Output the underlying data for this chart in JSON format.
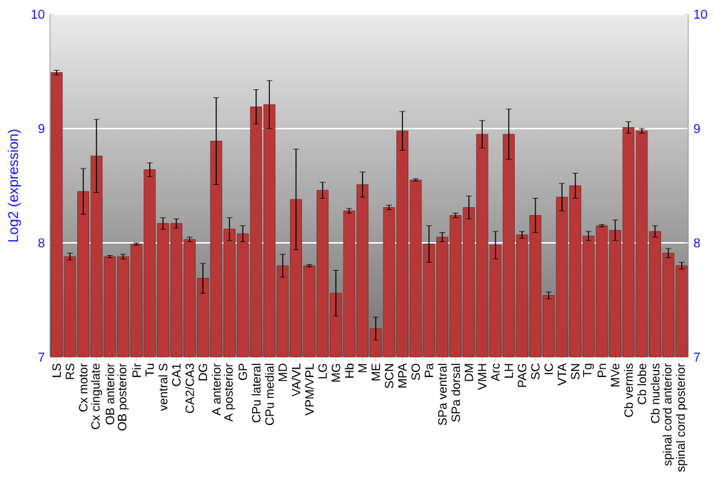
{
  "chart_data": {
    "type": "bar",
    "ylabel": "Log2 (expression)",
    "categories": [
      "LS",
      "RS",
      "Cx motor",
      "Cx cingulate",
      "OB anterior",
      "OB posterior",
      "Pir",
      "Tu",
      "ventral S",
      "CA1",
      "CA2/CA3",
      "DG",
      "A anterior",
      "A posterior",
      "GP",
      "CPu lateral",
      "CPu medial",
      "MD",
      "VA/VL",
      "VPM/VPL",
      "LG",
      "MG",
      "Hb",
      "M",
      "ME",
      "SCN",
      "MPA",
      "SO",
      "Pa",
      "SPa ventral",
      "SPa dorsal",
      "DM",
      "VMH",
      "Arc",
      "LH",
      "PAG",
      "SC",
      "IC",
      "VTA",
      "SN",
      "Tg",
      "Pn",
      "MVe",
      "Cb vermis",
      "Cb lobe",
      "Cb nucleus",
      "spinal cord anterior",
      "spinal cord posterior"
    ],
    "values": [
      9.49,
      7.88,
      8.45,
      8.76,
      7.88,
      7.88,
      7.99,
      8.64,
      8.17,
      8.17,
      8.03,
      7.69,
      8.89,
      8.12,
      8.08,
      9.19,
      9.21,
      7.8,
      8.38,
      7.8,
      8.46,
      7.56,
      8.28,
      8.51,
      7.25,
      8.31,
      8.98,
      8.55,
      7.99,
      8.05,
      8.24,
      8.31,
      8.95,
      7.98,
      8.95,
      8.07,
      8.24,
      7.54,
      8.4,
      8.5,
      8.06,
      8.15,
      8.11,
      9.01,
      8.98,
      8.1,
      7.91,
      7.8
    ],
    "errors": [
      0.02,
      0.03,
      0.2,
      0.32,
      0.01,
      0.02,
      0.01,
      0.06,
      0.05,
      0.04,
      0.02,
      0.13,
      0.38,
      0.1,
      0.07,
      0.15,
      0.21,
      0.1,
      0.44,
      0.01,
      0.07,
      0.2,
      0.02,
      0.11,
      0.1,
      0.02,
      0.17,
      0.01,
      0.16,
      0.04,
      0.02,
      0.1,
      0.12,
      0.12,
      0.22,
      0.03,
      0.15,
      0.03,
      0.12,
      0.11,
      0.04,
      0.01,
      0.09,
      0.05,
      0.02,
      0.05,
      0.04,
      0.03
    ],
    "color": "#b83838",
    "ylim": [
      7,
      10
    ],
    "yticks": [
      7,
      8,
      9,
      10
    ],
    "y2lim": [
      7,
      10
    ],
    "y2ticks": [
      7,
      8,
      9,
      10
    ],
    "grid": "y"
  }
}
